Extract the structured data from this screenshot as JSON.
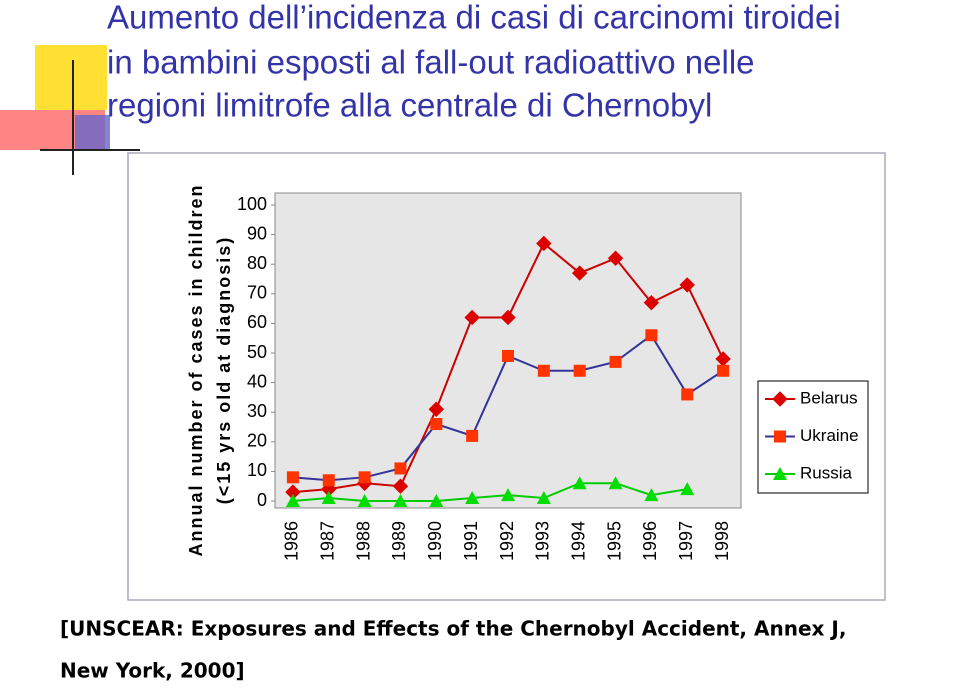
{
  "chart_data": {
    "type": "line",
    "title_lines": [
      "Aumento dell’incidenza di casi di carcinomi tiroidei",
      "in bambini esposti al fall-out radioattivo nelle",
      "regioni limitrofe alla centrale di Chernobyl"
    ],
    "y_label_lines": [
      "Annual number of cases in children",
      "(<15 yrs old at diagnosis)"
    ],
    "categories": [
      "1986",
      "1987",
      "1988",
      "1989",
      "1990",
      "1991",
      "1992",
      "1993",
      "1994",
      "1995",
      "1996",
      "1997",
      "1998"
    ],
    "series": [
      {
        "name": "Belarus",
        "marker": "diamond",
        "color": "#dd0000",
        "line_color": "#cc0000",
        "values": [
          3,
          4,
          6,
          5,
          31,
          62,
          62,
          87,
          77,
          82,
          67,
          73,
          48
        ]
      },
      {
        "name": "Ukraine",
        "marker": "square",
        "color": "#ff3300",
        "line_color": "#333399",
        "values": [
          8,
          7,
          8,
          11,
          26,
          22,
          49,
          44,
          44,
          47,
          56,
          36,
          44
        ]
      },
      {
        "name": "Russia",
        "marker": "triangle",
        "color": "#00dd00",
        "line_color": "#00cc00",
        "values": [
          0,
          1,
          0,
          0,
          0,
          1,
          2,
          1,
          6,
          6,
          2,
          4,
          null
        ]
      }
    ],
    "ylim": [
      0,
      100
    ],
    "yticks": [
      0,
      10,
      20,
      30,
      40,
      50,
      60,
      70,
      80,
      90,
      100
    ],
    "legend": "right"
  },
  "source_lines": [
    "[UNSCEAR: Exposures and Effects of the Chernobyl Accident, Annex J,",
    "New York, 2000]"
  ]
}
